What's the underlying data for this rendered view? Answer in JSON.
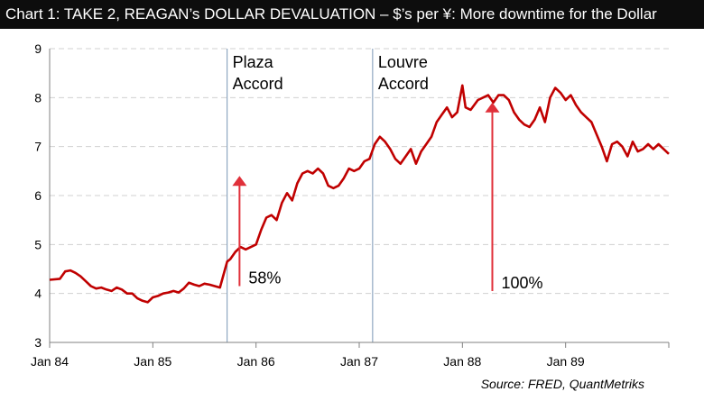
{
  "title": "Chart 1: TAKE 2, REAGAN’s DOLLAR DEVALUATION – $’s per ¥: More downtime for the Dollar",
  "source": "Source: FRED, QuantMetriks",
  "colors": {
    "line": "#c00000",
    "arrow": "#e0303a",
    "event_line": "#7a97b5",
    "grid": "#d0d0d0",
    "title_bg": "#0d0d0d"
  },
  "chart_data": {
    "type": "line",
    "title": "Chart 1: TAKE 2, REAGAN’s DOLLAR DEVALUATION – $’s per ¥: More downtime for the Dollar",
    "xlabel": "",
    "ylabel": "",
    "ylim": [
      3,
      9
    ],
    "xlim": [
      1984.0,
      1990.0
    ],
    "y_ticks": [
      3,
      4,
      5,
      6,
      7,
      8,
      9
    ],
    "x_tick_labels": [
      "Jan 84",
      "Jan 85",
      "Jan 86",
      "Jan 87",
      "Jan 88",
      "Jan 89"
    ],
    "grid": "horizontal dashed",
    "series": [
      {
        "x": [
          1984.0,
          1984.1,
          1984.15,
          1984.2,
          1984.25,
          1984.3,
          1984.35,
          1984.4,
          1984.45,
          1984.5,
          1984.55,
          1984.6,
          1984.65,
          1984.7,
          1984.75,
          1984.8,
          1984.85,
          1984.9,
          1984.95,
          1985.0,
          1985.05,
          1985.1,
          1985.15,
          1985.2,
          1985.25,
          1985.3,
          1985.35,
          1985.4,
          1985.45,
          1985.5,
          1985.55,
          1985.6,
          1985.65,
          1985.7,
          1985.72,
          1985.75,
          1985.8,
          1985.85,
          1985.9,
          1985.95,
          1986.0,
          1986.05,
          1986.1,
          1986.15,
          1986.2,
          1986.25,
          1986.3,
          1986.35,
          1986.4,
          1986.45,
          1986.5,
          1986.55,
          1986.6,
          1986.65,
          1986.7,
          1986.75,
          1986.8,
          1986.85,
          1986.9,
          1986.95,
          1987.0,
          1987.05,
          1987.1,
          1987.15,
          1987.2,
          1987.25,
          1987.3,
          1987.35,
          1987.4,
          1987.45,
          1987.5,
          1987.55,
          1987.6,
          1987.65,
          1987.7,
          1987.75,
          1987.8,
          1987.85,
          1987.9,
          1987.95,
          1988.0,
          1988.03,
          1988.08,
          1988.15,
          1988.2,
          1988.25,
          1988.3,
          1988.35,
          1988.4,
          1988.45,
          1988.5,
          1988.55,
          1988.6,
          1988.65,
          1988.7,
          1988.75,
          1988.8,
          1988.85,
          1988.9,
          1988.95,
          1989.0,
          1989.05,
          1989.1,
          1989.15,
          1989.2,
          1989.25,
          1989.3,
          1989.35,
          1989.4,
          1989.45,
          1989.5,
          1989.55,
          1989.6,
          1989.65,
          1989.7,
          1989.75,
          1989.8,
          1989.85,
          1989.9,
          1989.95,
          1990.0
        ],
        "values": [
          4.28,
          4.3,
          4.45,
          4.47,
          4.42,
          4.35,
          4.25,
          4.15,
          4.1,
          4.12,
          4.08,
          4.05,
          4.12,
          4.08,
          4.0,
          4.0,
          3.9,
          3.85,
          3.82,
          3.92,
          3.95,
          4.0,
          4.02,
          4.05,
          4.02,
          4.1,
          4.22,
          4.18,
          4.15,
          4.2,
          4.18,
          4.15,
          4.12,
          4.5,
          4.65,
          4.7,
          4.85,
          4.95,
          4.9,
          4.95,
          5.0,
          5.3,
          5.55,
          5.6,
          5.5,
          5.85,
          6.05,
          5.9,
          6.25,
          6.45,
          6.5,
          6.45,
          6.55,
          6.45,
          6.2,
          6.15,
          6.2,
          6.35,
          6.55,
          6.5,
          6.55,
          6.7,
          6.75,
          7.05,
          7.2,
          7.1,
          6.95,
          6.75,
          6.65,
          6.8,
          6.95,
          6.65,
          6.9,
          7.05,
          7.2,
          7.5,
          7.65,
          7.8,
          7.6,
          7.7,
          8.25,
          7.8,
          7.75,
          7.95,
          8.0,
          8.05,
          7.9,
          8.05,
          8.05,
          7.95,
          7.7,
          7.55,
          7.45,
          7.4,
          7.55,
          7.8,
          7.5,
          8.0,
          8.2,
          8.1,
          7.95,
          8.05,
          7.85,
          7.7,
          7.6,
          7.5,
          7.25,
          7.0,
          6.7,
          7.05,
          7.1,
          7.0,
          6.8,
          7.1,
          6.9,
          6.95,
          7.05,
          6.95,
          7.05,
          6.95,
          6.85
        ]
      }
    ],
    "events": [
      {
        "label_line1": "Plaza",
        "label_line2": "Accord",
        "x": 1985.72
      },
      {
        "label_line1": "Louvre",
        "label_line2": "Accord",
        "x": 1987.13
      }
    ],
    "arrows": [
      {
        "label": "58%",
        "x": 1985.84,
        "y_from": 4.15,
        "y_to": 6.4
      },
      {
        "label": "100%",
        "x": 1988.29,
        "y_from": 4.05,
        "y_to": 7.9
      }
    ]
  }
}
